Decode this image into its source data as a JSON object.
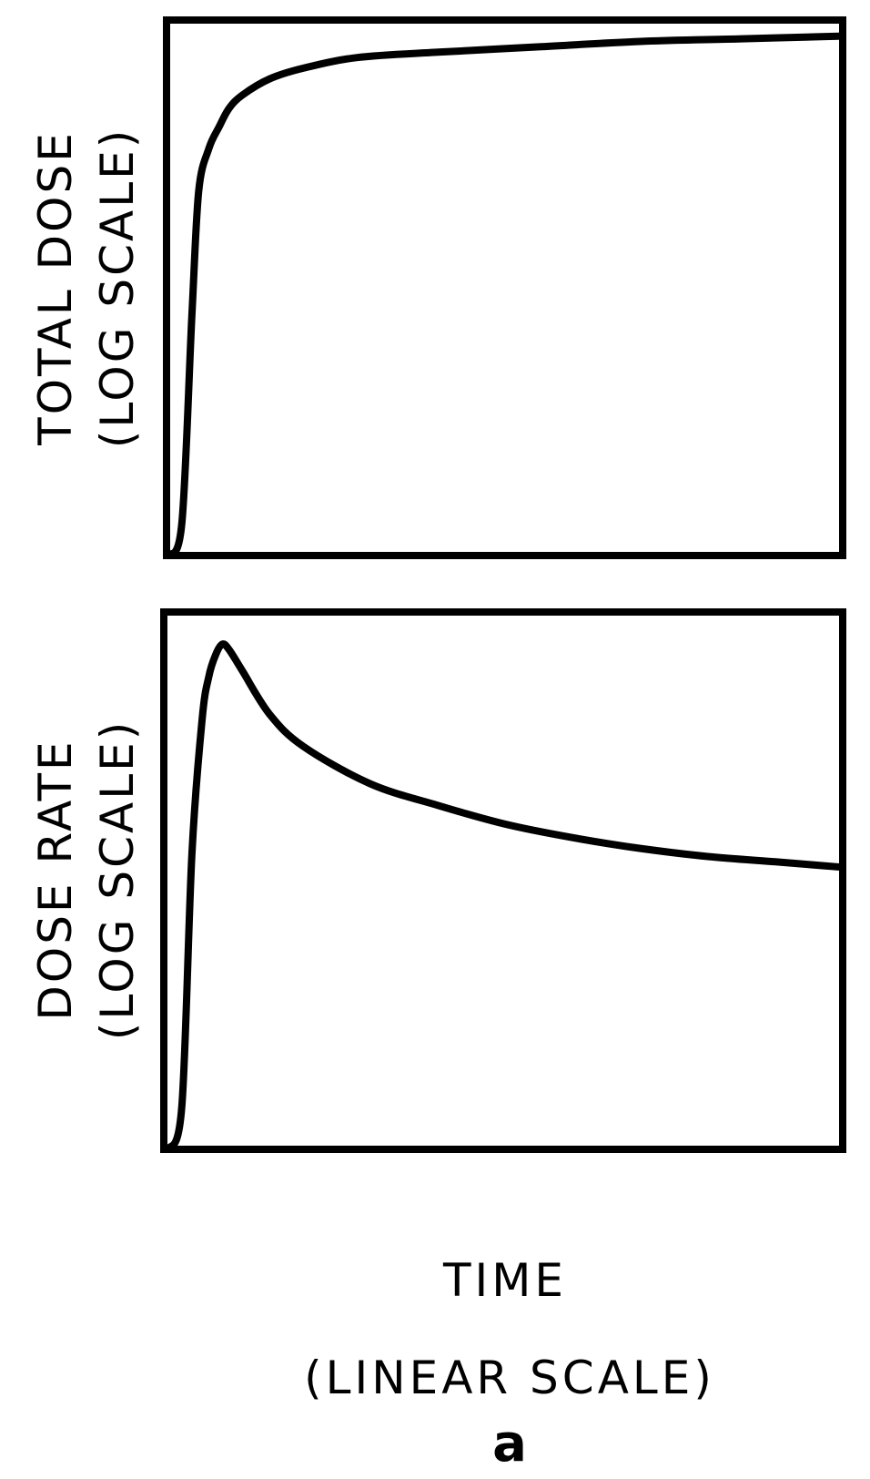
{
  "chart_data": [
    {
      "type": "line",
      "ylabel_line1": "TOTAL DOSE",
      "ylabel_line2": "(LOG SCALE)",
      "xlabel": "",
      "grid": false,
      "axis_ticks": false,
      "series": [
        {
          "x": [
            0.0,
            0.02,
            0.035,
            0.045,
            0.06,
            0.075,
            0.09,
            0.11,
            0.15,
            0.2,
            0.28,
            0.4,
            0.55,
            0.7,
            0.85,
            1.0
          ],
          "y": [
            0.0,
            0.06,
            0.45,
            0.68,
            0.76,
            0.8,
            0.835,
            0.86,
            0.89,
            0.91,
            0.93,
            0.94,
            0.95,
            0.96,
            0.965,
            0.97
          ]
        }
      ]
    },
    {
      "type": "line",
      "ylabel_line1": "DOSE RATE",
      "ylabel_line2": "(LOG SCALE)",
      "xlabel": "",
      "grid": false,
      "axis_ticks": false,
      "series": [
        {
          "x": [
            0.0,
            0.02,
            0.035,
            0.05,
            0.06,
            0.07,
            0.08,
            0.09,
            0.11,
            0.15,
            0.2,
            0.3,
            0.4,
            0.5,
            0.6,
            0.7,
            0.8,
            0.9,
            1.0
          ],
          "y": [
            0.0,
            0.08,
            0.55,
            0.8,
            0.88,
            0.92,
            0.94,
            0.93,
            0.89,
            0.81,
            0.75,
            0.68,
            0.64,
            0.605,
            0.58,
            0.56,
            0.545,
            0.535,
            0.525
          ]
        }
      ]
    }
  ],
  "xlabel_line1": "TIME",
  "xlabel_line2": "(LINEAR SCALE)",
  "panel_label": "a",
  "colors": {
    "line": "#000000",
    "background": "#ffffff"
  }
}
